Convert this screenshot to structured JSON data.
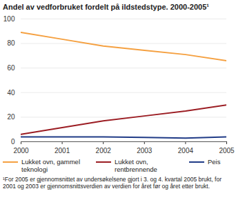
{
  "chart_data": {
    "type": "line",
    "title": "Andel av vedforbruket fordelt på ildstedstype. 2000-2005¹",
    "x": [
      2000,
      2001,
      2002,
      2003,
      2004,
      2005
    ],
    "series": [
      {
        "name": "Lukket ovn, gammel teknologi",
        "color": "#f5a040",
        "values": [
          89,
          83.5,
          78,
          74.5,
          71,
          66
        ]
      },
      {
        "name": "Lukket ovn, rentbrennende",
        "color": "#9b1c22",
        "values": [
          6,
          11.5,
          17,
          21,
          25,
          30
        ]
      },
      {
        "name": "Peis",
        "color": "#1f3a86",
        "values": [
          4,
          4,
          4,
          3.5,
          3,
          4
        ]
      }
    ],
    "xlim": [
      2000,
      2005
    ],
    "xticks": [
      2000,
      2001,
      2002,
      2003,
      2004,
      2005
    ],
    "ylim": [
      0,
      100
    ],
    "yticks": [
      0,
      20,
      40,
      60,
      80,
      100
    ],
    "grid": true,
    "legend": "bottom",
    "annotations": [
      "¹For 2005 er gjennomsnittet av undersøkelsene gjort i 3. og 4. kvartal 2005 brukt, for 2001 og 2003 er gjennomsnittsverdien av verdien for året før og året etter brukt."
    ]
  }
}
